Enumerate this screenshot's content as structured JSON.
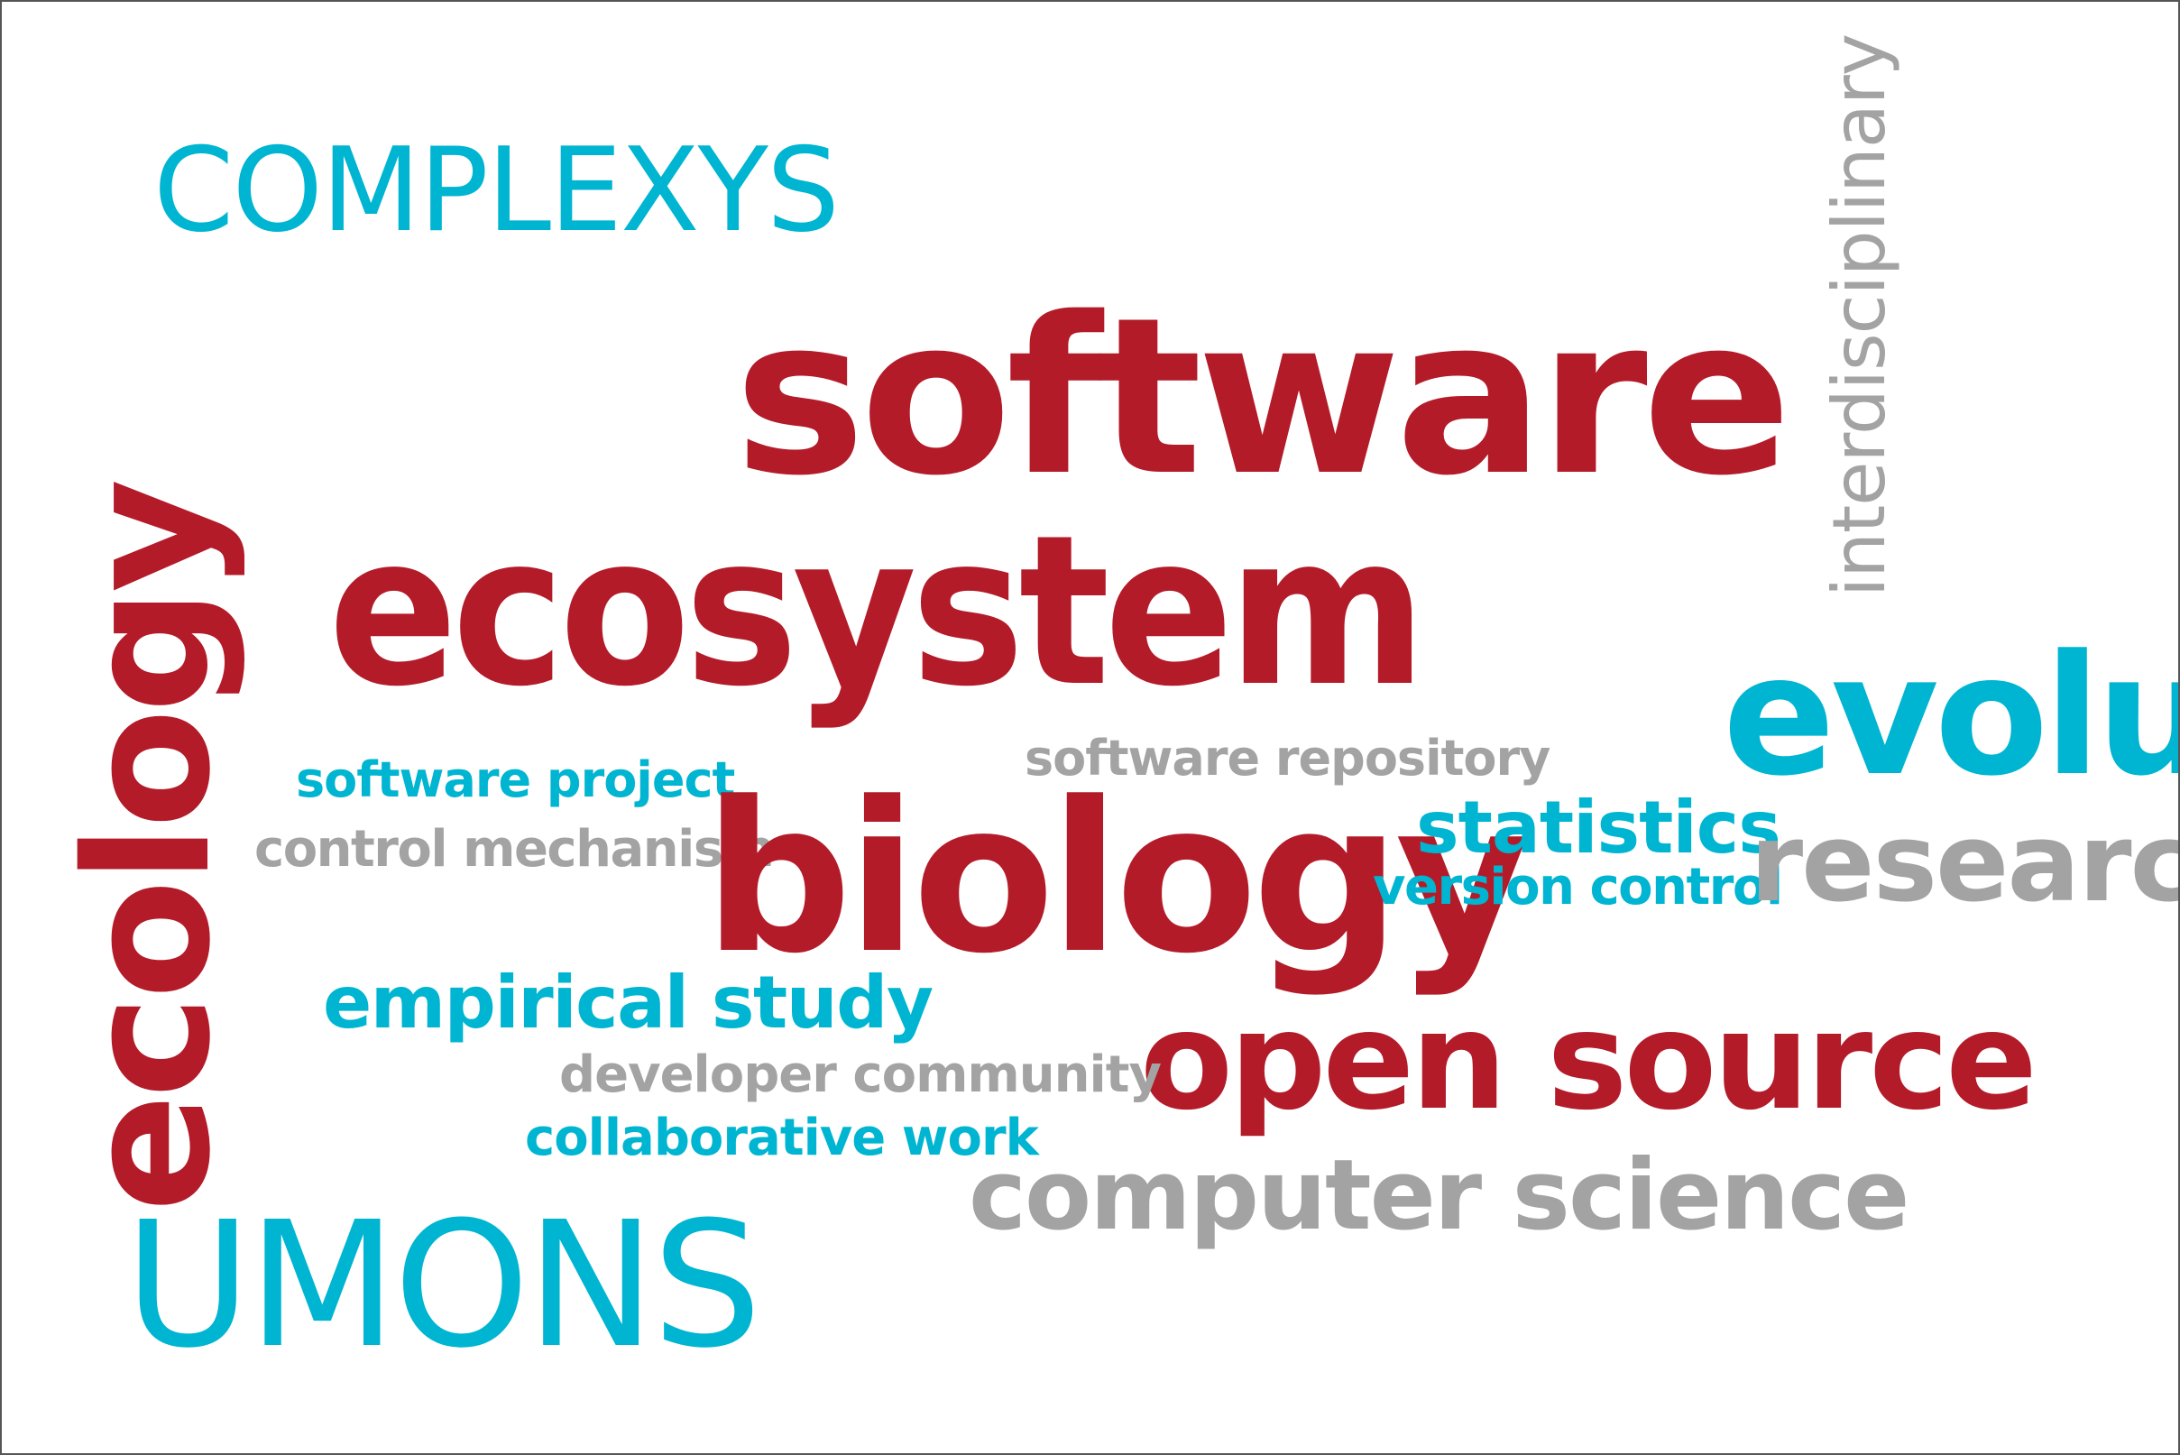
{
  "colors": {
    "red": "#b31b29",
    "blue": "#00b5d1",
    "grey": "#a3a3a3",
    "background": "#ffffff",
    "border": "#555555"
  },
  "words": {
    "complexys": "COMPLEXYS",
    "software": "software",
    "ecosystem": "ecosystem",
    "interdisciplinary": "interdisciplinary",
    "ecology": "ecology",
    "evolution": "evolu",
    "software_project": "software project",
    "software_repository": "software repository",
    "control_mechanism": "control mechanism",
    "biology": "biology",
    "statistics": "statistics",
    "version_control": "version control",
    "research": "research",
    "empirical_study": "empirical study",
    "open_source": "open source",
    "developer_community": "developer community",
    "collaborative_work": "collaborative work",
    "computer_science": "computer science",
    "umons": "UMONS"
  }
}
